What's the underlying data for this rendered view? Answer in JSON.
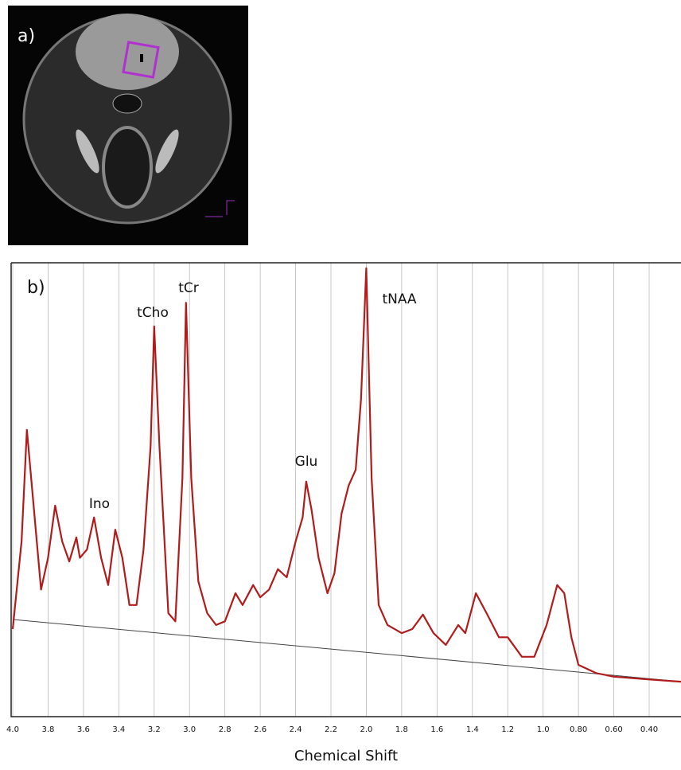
{
  "panel_a": {
    "label": "a)"
  },
  "chart_data": {
    "type": "line",
    "panel_label": "b)",
    "x_label": "Chemical Shift",
    "annotations": [
      "Ino",
      "tCho",
      "tCr",
      "Glu",
      "tNAA"
    ],
    "x": [
      4.0,
      3.95,
      3.92,
      3.88,
      3.84,
      3.8,
      3.76,
      3.72,
      3.68,
      3.64,
      3.62,
      3.58,
      3.54,
      3.5,
      3.46,
      3.42,
      3.38,
      3.34,
      3.3,
      3.26,
      3.22,
      3.2,
      3.17,
      3.12,
      3.08,
      3.04,
      3.02,
      2.99,
      2.95,
      2.9,
      2.85,
      2.8,
      2.74,
      2.7,
      2.64,
      2.6,
      2.55,
      2.5,
      2.45,
      2.4,
      2.36,
      2.34,
      2.31,
      2.27,
      2.22,
      2.18,
      2.14,
      2.1,
      2.06,
      2.03,
      2.0,
      1.97,
      1.93,
      1.88,
      1.8,
      1.74,
      1.68,
      1.62,
      1.55,
      1.48,
      1.44,
      1.38,
      1.32,
      1.25,
      1.2,
      1.12,
      1.05,
      0.98,
      0.92,
      0.88,
      0.84,
      0.8,
      0.7,
      0.6,
      0.4,
      0.22
    ],
    "series": [
      {
        "color": "#b01c1c",
        "values": [
          19.3,
          38.6,
          63.2,
          45.6,
          28,
          35,
          46.5,
          38.6,
          34.2,
          39.5,
          35,
          36.8,
          43.9,
          35,
          29,
          41.2,
          35,
          24.6,
          24.6,
          36.8,
          59.6,
          86,
          59.6,
          22.8,
          21,
          52.6,
          91.2,
          52.6,
          29.8,
          22.8,
          20.2,
          21,
          27.2,
          24.6,
          29,
          26.3,
          28,
          32.5,
          30.7,
          38.6,
          43.9,
          51.8,
          45.6,
          35,
          27.2,
          31.6,
          44.7,
          50.9,
          54.4,
          70,
          98.8,
          52.6,
          24.6,
          20.2,
          18.4,
          19.3,
          22.5,
          18.4,
          15.8,
          20.2,
          18.4,
          27.2,
          22.8,
          17.5,
          17.5,
          13.2,
          13.2,
          20.2,
          29,
          27.2,
          17.5,
          11.4,
          9.6,
          8.8,
          8.2,
          7.7
        ]
      }
    ],
    "xlim": [
      4.0,
      0.22
    ],
    "ylim": [
      0,
      100
    ],
    "xticks": [
      {
        "value": 4.0,
        "label": "4.0"
      },
      3.8,
      3.6,
      3.4,
      3.2,
      {
        "value": 3.0,
        "label": "3.0"
      },
      2.8,
      2.6,
      2.4,
      2.2,
      {
        "value": 2.0,
        "label": "2.0"
      },
      1.8,
      1.6,
      1.4,
      1.2,
      {
        "value": 1.0,
        "label": "1.0"
      },
      {
        "value": 0.8,
        "label": "0.80"
      },
      {
        "value": 0.6,
        "label": "0.60"
      },
      {
        "value": 0.4,
        "label": "0.40"
      }
    ],
    "grid": true
  }
}
